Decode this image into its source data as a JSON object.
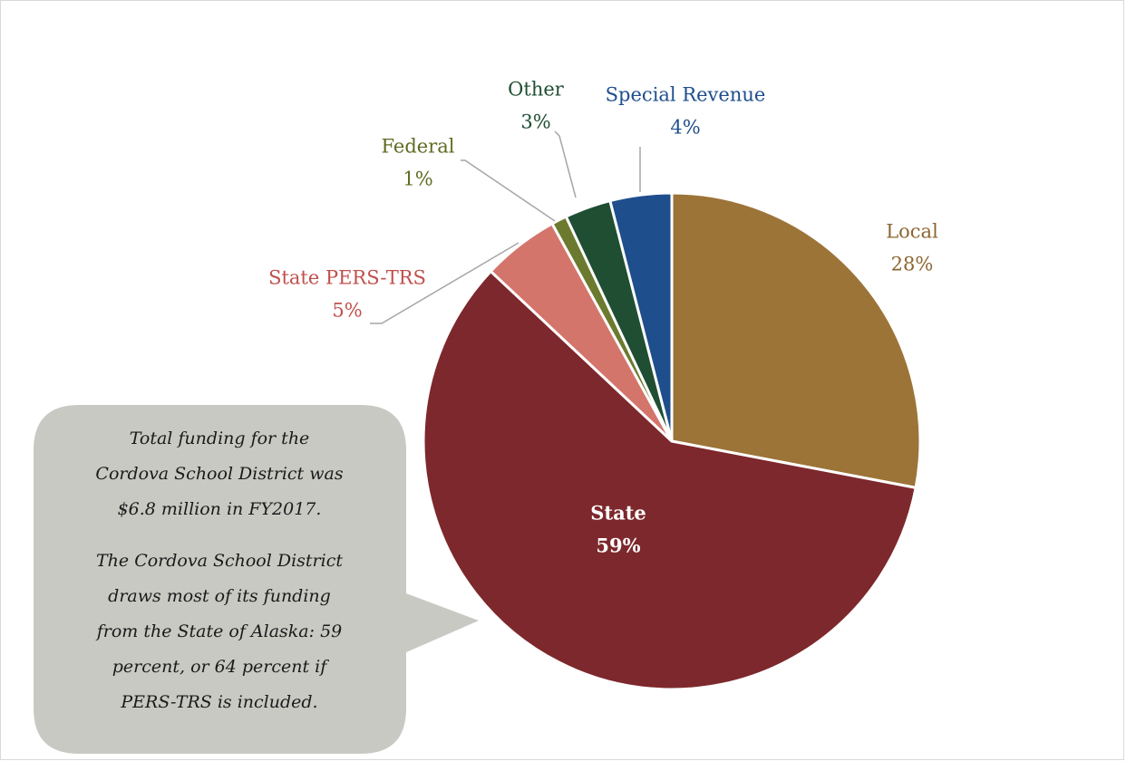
{
  "chart_data": {
    "type": "pie",
    "categories": [
      "Local",
      "State",
      "State PERS-TRS",
      "Federal",
      "Other",
      "Special Revenue"
    ],
    "values": [
      28,
      59,
      5,
      1,
      3,
      4
    ],
    "value_labels": [
      "28%",
      "59%",
      "5%",
      "1%",
      "3%",
      "4%"
    ],
    "colors": [
      "#9c7438",
      "#7d282c",
      "#d4756c",
      "#6b7a2e",
      "#1f4e33",
      "#1f4e8c"
    ],
    "annotations": [
      [
        "Total funding for the",
        "Cordova School District was",
        "$6.8 million in FY2017."
      ],
      [
        "The Cordova School District",
        "draws most of its funding",
        "from the State of Alaska: 59",
        "percent, or 64 percent if",
        "PERS-TRS is included."
      ]
    ]
  }
}
